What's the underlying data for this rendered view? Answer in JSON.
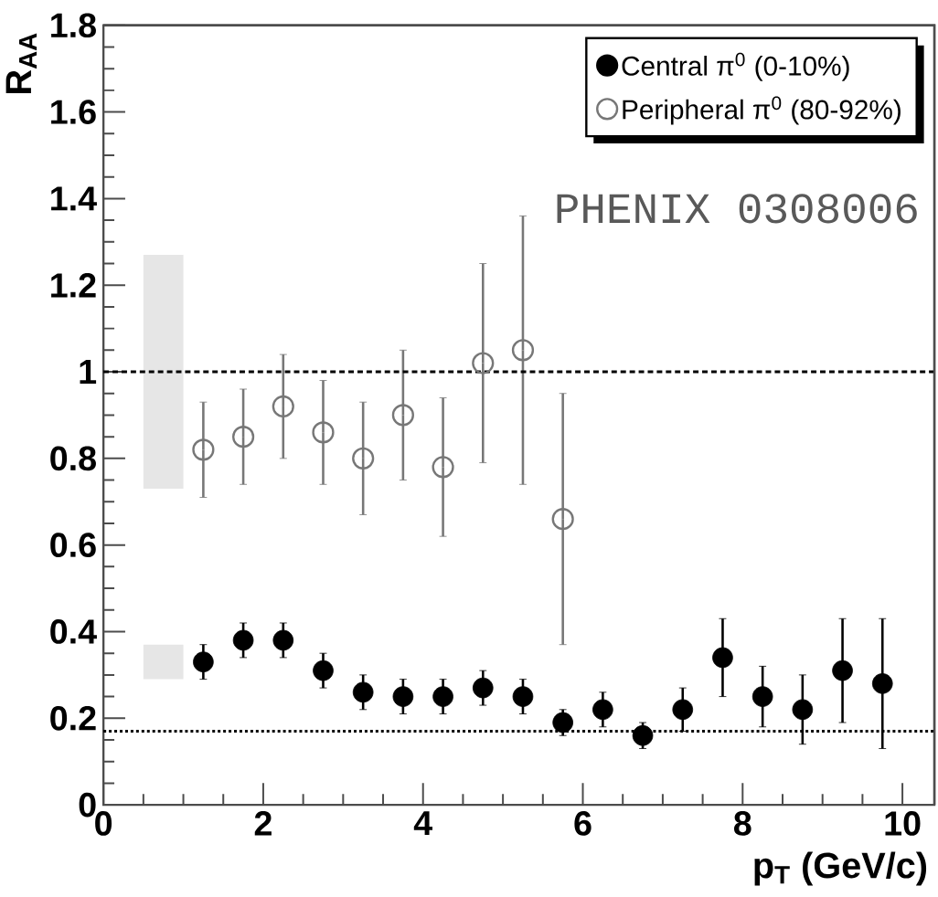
{
  "chart_data": {
    "type": "scatter",
    "xlabel": "p$_{T}$ (GeV/c)",
    "ylabel": "R$_{AA}$",
    "xlim": [
      0,
      10.4
    ],
    "ylim": [
      0,
      1.8
    ],
    "xticks": [
      0,
      2,
      4,
      6,
      8,
      10
    ],
    "yticks": [
      0,
      0.2,
      0.4,
      0.6,
      0.8,
      1,
      1.2,
      1.4,
      1.6,
      1.8
    ],
    "legend": "top right",
    "grid": false,
    "series": [
      {
        "name": "Central π$^{0}$ (0-10%)",
        "marker": "circle",
        "color": "#000000",
        "x": [
          1.25,
          1.75,
          2.25,
          2.75,
          3.25,
          3.75,
          4.25,
          4.75,
          5.25,
          5.75,
          6.25,
          6.75,
          7.25,
          7.75,
          8.25,
          8.75,
          9.25,
          9.75
        ],
        "values": [
          0.33,
          0.38,
          0.38,
          0.31,
          0.26,
          0.25,
          0.25,
          0.27,
          0.25,
          0.19,
          0.22,
          0.16,
          0.22,
          0.34,
          0.25,
          0.22,
          0.31,
          0.28
        ],
        "errors": [
          0.04,
          0.04,
          0.04,
          0.04,
          0.04,
          0.04,
          0.04,
          0.04,
          0.04,
          0.03,
          0.04,
          0.03,
          0.05,
          0.09,
          0.07,
          0.08,
          0.12,
          0.15
        ]
      },
      {
        "name": "Peripheral π$^{0}$ (80-92%)",
        "marker": "open circle",
        "color": "#777777",
        "x": [
          1.25,
          1.75,
          2.25,
          2.75,
          3.25,
          3.75,
          4.25,
          4.75,
          5.25,
          5.75
        ],
        "values": [
          0.82,
          0.85,
          0.92,
          0.86,
          0.8,
          0.9,
          0.78,
          1.02,
          1.05,
          0.66
        ],
        "errors": [
          0.11,
          0.11,
          0.12,
          0.12,
          0.13,
          0.15,
          0.16,
          0.23,
          0.31,
          0.29
        ]
      },
      {
        "type": "bar",
        "color": "#e6e6e6",
        "x": [
          0.75,
          0.75
        ],
        "base": [
          0.73,
          0.29
        ],
        "values": [
          0.54,
          0.08
        ]
      }
    ],
    "ref_lines": [
      {
        "axis": "y",
        "value": 1,
        "line_style": "dashed"
      },
      {
        "axis": "y",
        "value": 0.17,
        "line_style": "dotted"
      }
    ],
    "annotations": [
      "PHENIX 0308006"
    ]
  }
}
